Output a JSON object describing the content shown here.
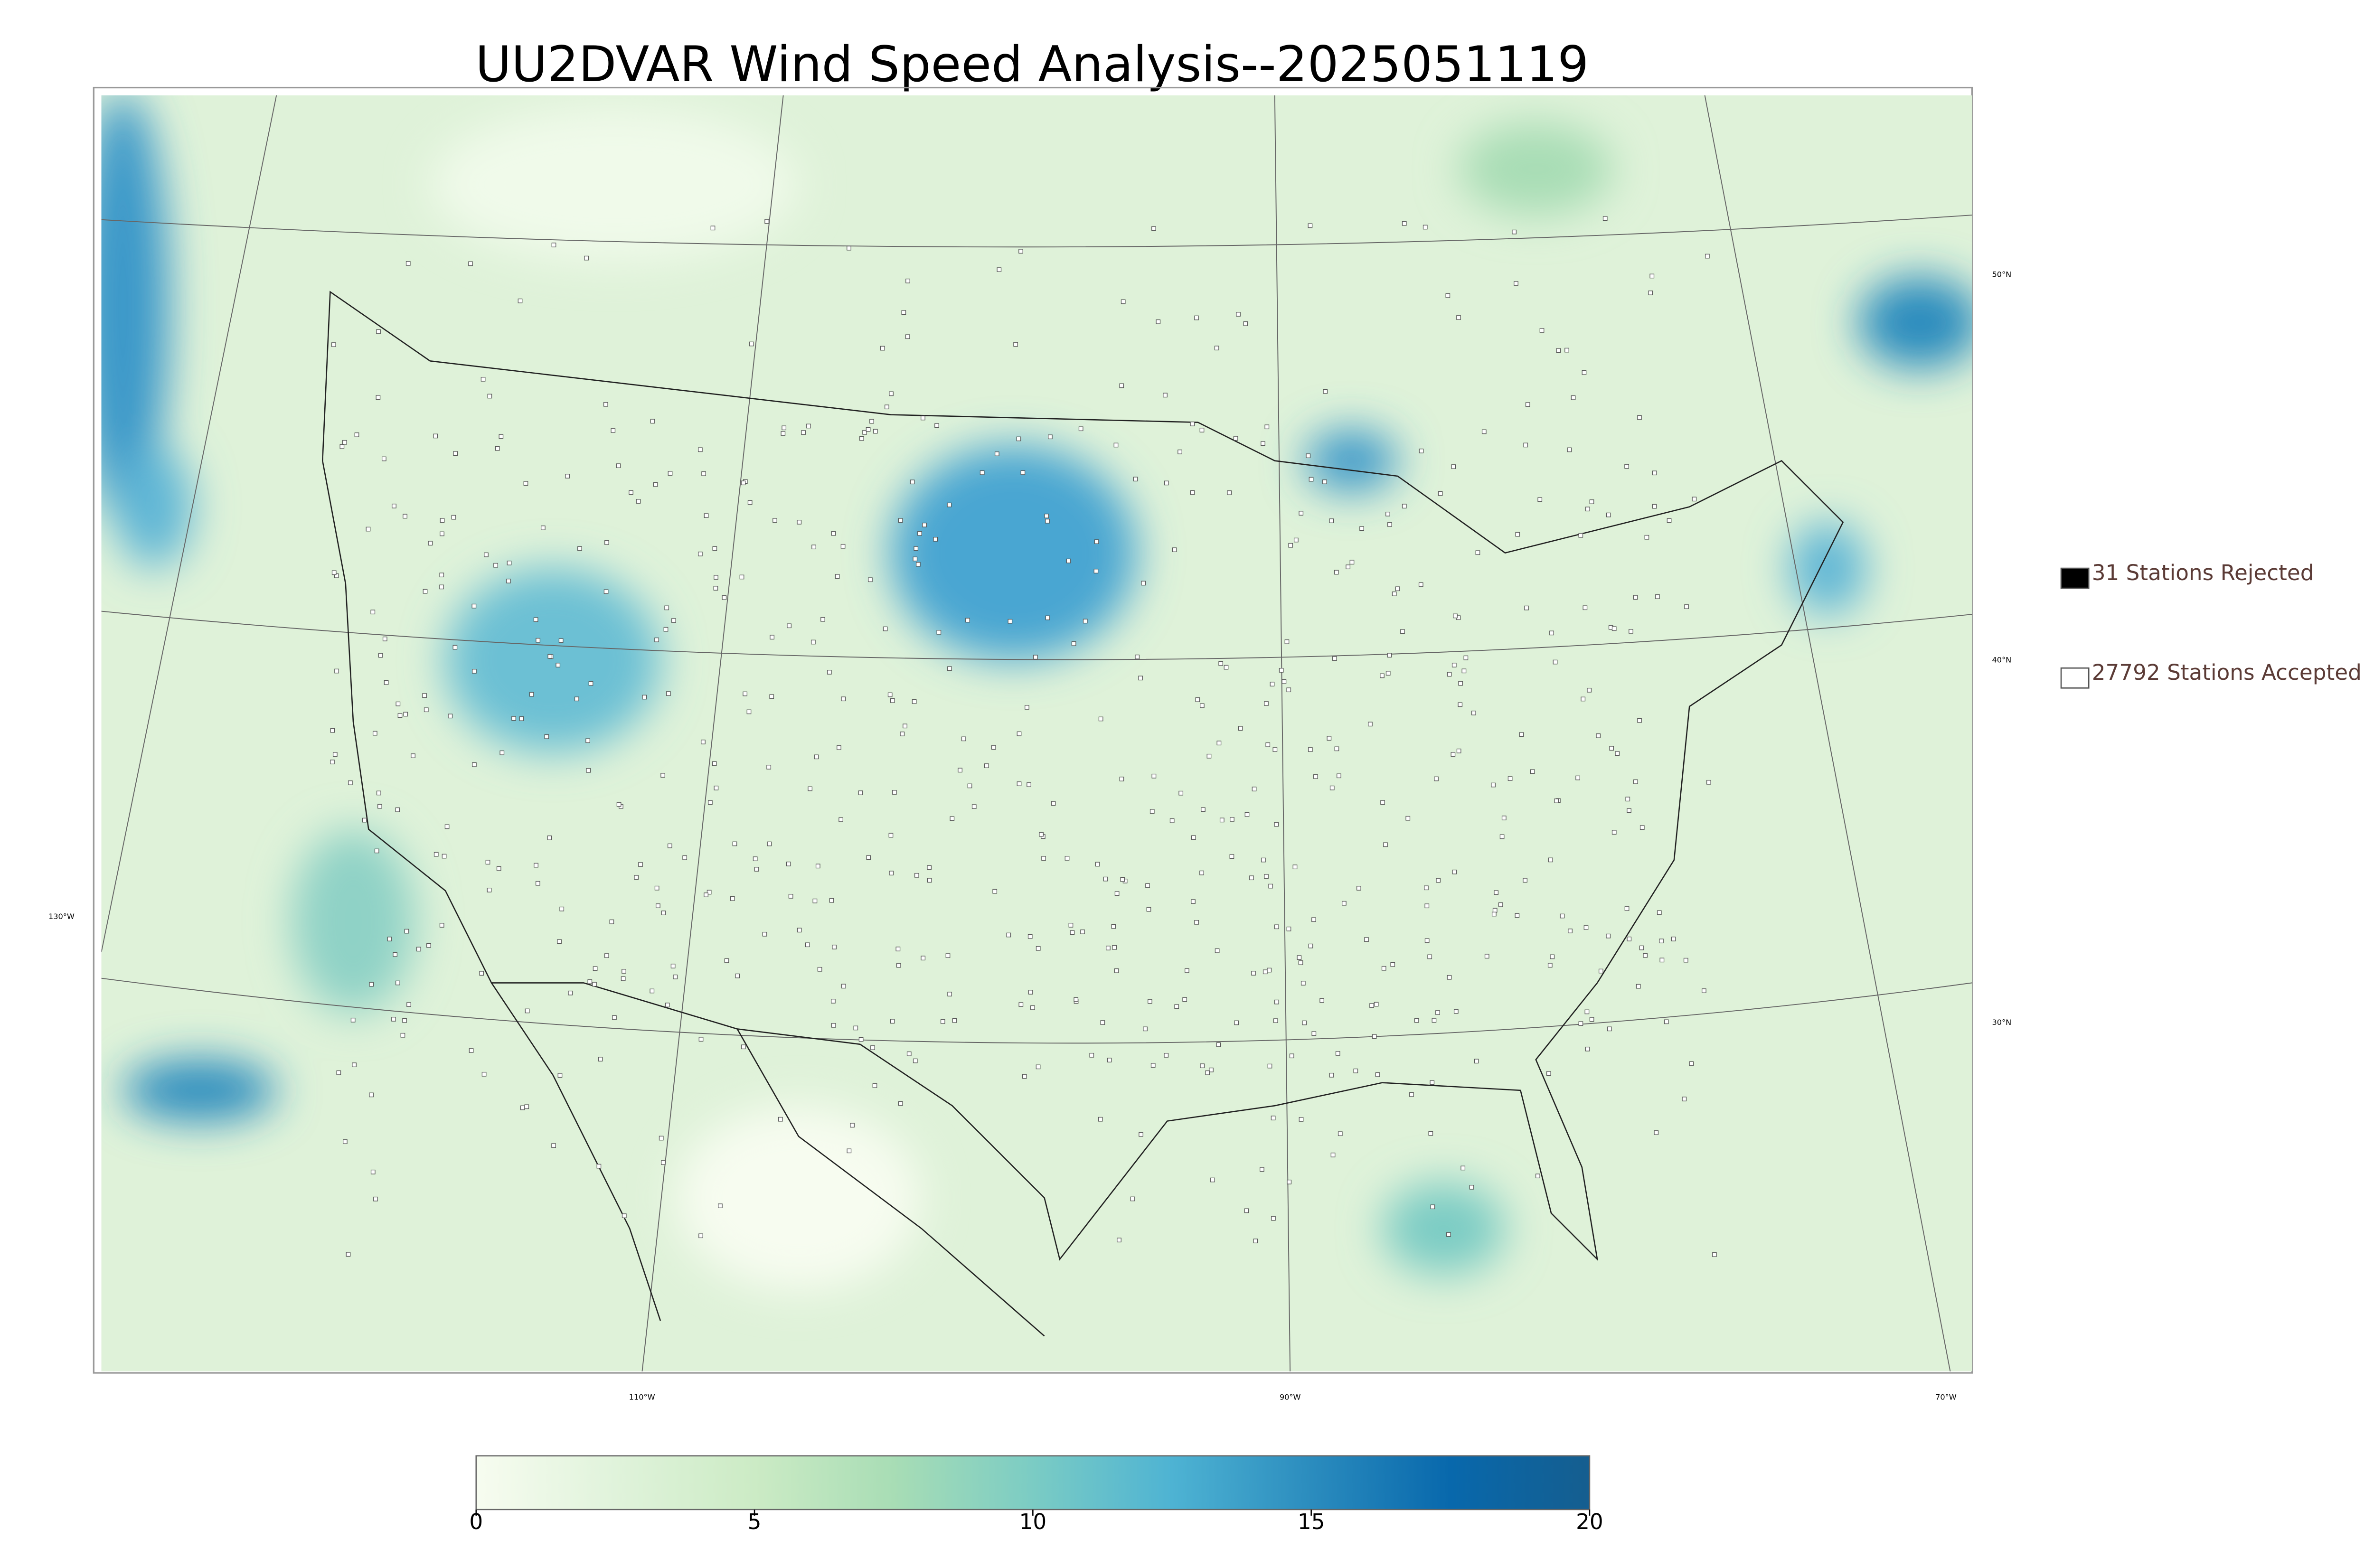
{
  "title": "UU2DVAR Wind Speed Analysis--2025051119",
  "legend": [
    {
      "label": "31 Stations Rejected",
      "color": "#000000"
    },
    {
      "label": "27792 Stations Accepted",
      "color": "#ffffff"
    }
  ],
  "graticule": {
    "lat_labels": [
      "50°N",
      "40°N",
      "30°N"
    ],
    "lon_labels": [
      "130°W",
      "110°W",
      "90°W",
      "70°W"
    ]
  },
  "colorbar": {
    "lim": [
      0,
      20
    ],
    "ticks": [
      0,
      5,
      10,
      15,
      20
    ],
    "colors": [
      "#f7fcf0",
      "#e0f3db",
      "#ccebc5",
      "#a8ddb5",
      "#7bccc4",
      "#4eb3d3",
      "#2b8cbe",
      "#0868ac",
      "#155e8f"
    ]
  }
}
